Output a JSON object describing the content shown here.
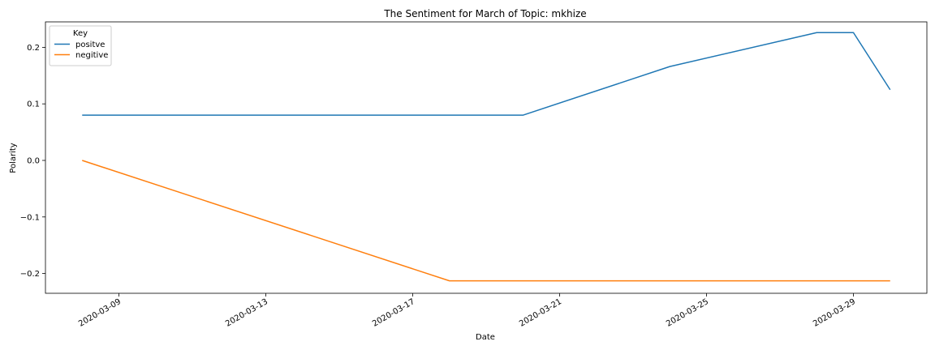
{
  "chart_data": {
    "type": "line",
    "title": "The Sentiment for March of Topic: mkhize",
    "xlabel": "Date",
    "ylabel": "Polarity",
    "x_type": "date",
    "xlim": [
      "2020-03-07",
      "2020-03-31"
    ],
    "ylim": [
      -0.235,
      0.245
    ],
    "x_ticks": [
      "2020-03-09",
      "2020-03-13",
      "2020-03-17",
      "2020-03-21",
      "2020-03-25",
      "2020-03-29"
    ],
    "y_ticks": [
      0.2,
      0.1,
      0.0,
      -0.1,
      -0.2
    ],
    "y_tick_labels": [
      "0.2",
      "0.1",
      "0.0",
      "−0.1",
      "−0.2"
    ],
    "grid": false,
    "legend": {
      "title": "Key",
      "placement": "top-left"
    },
    "series": [
      {
        "name": "positve",
        "color": "#1f77b4",
        "points": [
          {
            "x": "2020-03-08",
            "y": 0.08
          },
          {
            "x": "2020-03-20",
            "y": 0.08
          },
          {
            "x": "2020-03-24",
            "y": 0.166
          },
          {
            "x": "2020-03-28",
            "y": 0.226
          },
          {
            "x": "2020-03-29",
            "y": 0.226
          },
          {
            "x": "2020-03-30",
            "y": 0.125
          }
        ]
      },
      {
        "name": "negitive",
        "color": "#ff7f0e",
        "points": [
          {
            "x": "2020-03-08",
            "y": 0.0
          },
          {
            "x": "2020-03-18",
            "y": -0.213
          },
          {
            "x": "2020-03-30",
            "y": -0.213
          }
        ]
      }
    ]
  }
}
